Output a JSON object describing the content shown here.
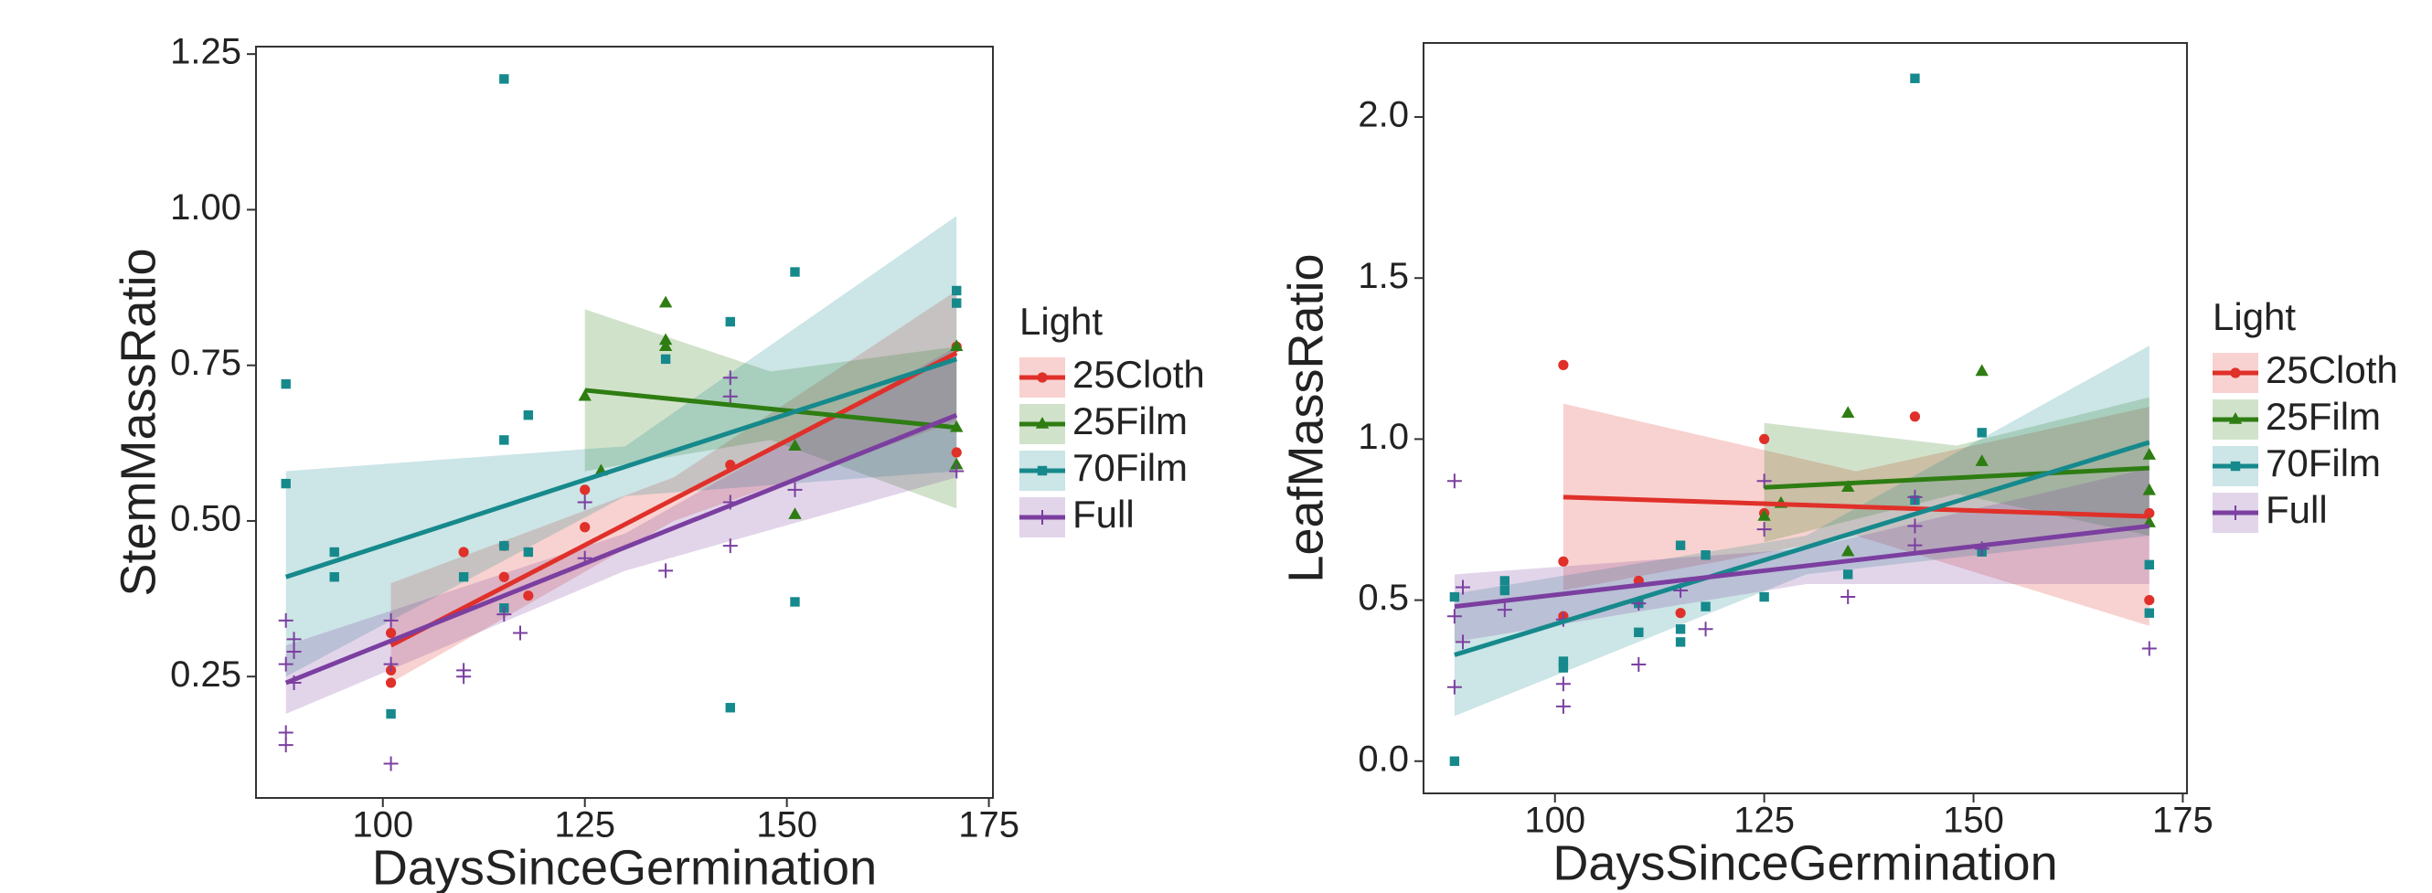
{
  "chart_data": [
    {
      "type": "scatter",
      "xlabel": "DaysSinceGermination",
      "ylabel": "StemMassRatio",
      "legend_title": "Light",
      "xlim": [
        84.3,
        175.5
      ],
      "xticks": [
        100,
        125,
        150,
        175
      ],
      "ylim": [
        0.055,
        1.262
      ],
      "yticks": [
        0.25,
        {
          "value": 0.5,
          "label": "0.50"
        },
        0.75,
        {
          "value": 1.0,
          "label": "1.00"
        },
        1.25
      ],
      "series": [
        {
          "name": "25Cloth",
          "color": "#e0302a",
          "shape": "circle",
          "x": [
            101,
            101,
            101,
            110,
            115,
            115,
            118,
            125,
            125,
            143,
            171,
            171
          ],
          "values": [
            0.26,
            0.24,
            0.32,
            0.45,
            0.46,
            0.41,
            0.38,
            0.55,
            0.49,
            0.59,
            0.61,
            0.78
          ],
          "fit": {
            "x": [
              101,
              171
            ],
            "values": [
              0.3,
              0.77
            ]
          },
          "band": {
            "x": [
              101,
              136,
              171
            ],
            "lower": [
              0.24,
              0.5,
              0.66
            ],
            "upper": [
              0.4,
              0.57,
              0.87
            ]
          }
        },
        {
          "name": "25Film",
          "color": "#2e7d12",
          "shape": "triangle",
          "x": [
            125,
            127,
            135,
            135,
            135,
            151,
            151,
            171,
            171,
            171
          ],
          "values": [
            0.7,
            0.58,
            0.85,
            0.79,
            0.78,
            0.62,
            0.51,
            0.78,
            0.59,
            0.65
          ],
          "fit": {
            "x": [
              125,
              171
            ],
            "values": [
              0.71,
              0.65
            ]
          },
          "band": {
            "x": [
              125,
              148,
              171
            ],
            "lower": [
              0.58,
              0.63,
              0.52
            ],
            "upper": [
              0.84,
              0.74,
              0.78
            ]
          }
        },
        {
          "name": "70Film",
          "color": "#16898c",
          "shape": "square",
          "x": [
            88,
            88,
            94,
            94,
            101,
            110,
            115,
            115,
            115,
            115,
            118,
            118,
            135,
            143,
            143,
            151,
            151,
            171,
            171
          ],
          "values": [
            0.72,
            0.56,
            0.45,
            0.41,
            0.19,
            0.41,
            1.21,
            0.63,
            0.46,
            0.36,
            0.67,
            0.45,
            0.76,
            0.82,
            0.2,
            0.9,
            0.37,
            0.87,
            0.85
          ],
          "fit": {
            "x": [
              88,
              171
            ],
            "values": [
              0.41,
              0.76
            ]
          },
          "band": {
            "x": [
              88,
              130,
              171
            ],
            "lower": [
              0.25,
              0.54,
              0.58
            ],
            "upper": [
              0.58,
              0.62,
              0.99
            ]
          }
        },
        {
          "name": "Full",
          "color": "#7b3fa0",
          "shape": "plus",
          "x": [
            88,
            88,
            88,
            88,
            89,
            89,
            89,
            101,
            101,
            101,
            110,
            110,
            115,
            117,
            125,
            125,
            135,
            143,
            143,
            143,
            143,
            151,
            171
          ],
          "values": [
            0.34,
            0.27,
            0.16,
            0.14,
            0.31,
            0.29,
            0.24,
            0.11,
            0.34,
            0.27,
            0.26,
            0.25,
            0.35,
            0.32,
            0.53,
            0.44,
            0.42,
            0.73,
            0.7,
            0.53,
            0.46,
            0.55,
            0.58
          ],
          "fit": {
            "x": [
              88,
              171
            ],
            "values": [
              0.24,
              0.67
            ]
          },
          "band": {
            "x": [
              88,
              130,
              171
            ],
            "lower": [
              0.19,
              0.42,
              0.57
            ],
            "upper": [
              0.3,
              0.48,
              0.78
            ]
          }
        }
      ]
    },
    {
      "type": "scatter",
      "xlabel": "DaysSinceGermination",
      "ylabel": "LeafMassRatio",
      "legend_title": "Light",
      "xlim": [
        84.3,
        175.5
      ],
      "xticks": [
        100,
        125,
        150,
        175
      ],
      "ylim": [
        -0.1,
        2.23
      ],
      "yticks": [
        {
          "value": 0,
          "label": "0.0"
        },
        0.5,
        {
          "value": 1.0,
          "label": "1.0"
        },
        1.5,
        {
          "value": 2.0,
          "label": "2.0"
        }
      ],
      "series": [
        {
          "name": "25Cloth",
          "color": "#e0302a",
          "shape": "circle",
          "x": [
            101,
            101,
            101,
            110,
            115,
            125,
            125,
            143,
            171,
            171
          ],
          "values": [
            1.23,
            0.62,
            0.45,
            0.56,
            0.46,
            1.0,
            0.77,
            1.07,
            0.77,
            0.5
          ],
          "fit": {
            "x": [
              101,
              171
            ],
            "values": [
              0.82,
              0.76
            ]
          },
          "band": {
            "x": [
              101,
              136,
              171
            ],
            "lower": [
              0.53,
              0.7,
              0.42
            ],
            "upper": [
              1.11,
              0.9,
              1.1
            ]
          }
        },
        {
          "name": "25Film",
          "color": "#2e7d12",
          "shape": "triangle",
          "x": [
            125,
            127,
            135,
            135,
            135,
            151,
            151,
            171,
            171,
            171
          ],
          "values": [
            0.76,
            0.8,
            1.08,
            0.85,
            0.65,
            1.21,
            0.93,
            0.95,
            0.84,
            0.74
          ],
          "fit": {
            "x": [
              125,
              171
            ],
            "values": [
              0.85,
              0.91
            ]
          },
          "band": {
            "x": [
              125,
              148,
              171
            ],
            "lower": [
              0.68,
              0.83,
              0.7
            ],
            "upper": [
              1.05,
              0.98,
              1.13
            ]
          }
        },
        {
          "name": "70Film",
          "color": "#16898c",
          "shape": "square",
          "x": [
            88,
            88,
            94,
            94,
            101,
            101,
            110,
            110,
            115,
            115,
            115,
            118,
            118,
            125,
            135,
            143,
            143,
            151,
            151,
            171,
            171
          ],
          "values": [
            0.0,
            0.51,
            0.56,
            0.53,
            0.31,
            0.29,
            0.4,
            0.49,
            0.67,
            0.41,
            0.37,
            0.48,
            0.64,
            0.51,
            0.58,
            2.12,
            0.81,
            1.02,
            0.65,
            0.61,
            0.46
          ],
          "fit": {
            "x": [
              88,
              171
            ],
            "values": [
              0.33,
              0.99
            ]
          },
          "band": {
            "x": [
              88,
              130,
              171
            ],
            "lower": [
              0.14,
              0.58,
              0.7
            ],
            "upper": [
              0.52,
              0.7,
              1.29
            ]
          }
        },
        {
          "name": "Full",
          "color": "#7b3fa0",
          "shape": "plus",
          "x": [
            88,
            88,
            88,
            89,
            89,
            94,
            101,
            101,
            101,
            110,
            110,
            115,
            118,
            125,
            125,
            135,
            143,
            143,
            143,
            151,
            171
          ],
          "values": [
            0.87,
            0.45,
            0.23,
            0.54,
            0.37,
            0.47,
            0.44,
            0.24,
            0.17,
            0.3,
            0.49,
            0.53,
            0.41,
            0.87,
            0.72,
            0.51,
            0.82,
            0.73,
            0.67,
            0.66,
            0.35
          ],
          "fit": {
            "x": [
              88,
              171
            ],
            "values": [
              0.48,
              0.73
            ]
          },
          "band": {
            "x": [
              88,
              130,
              171
            ],
            "lower": [
              0.37,
              0.55,
              0.55
            ],
            "upper": [
              0.58,
              0.66,
              0.91
            ]
          }
        }
      ]
    }
  ]
}
